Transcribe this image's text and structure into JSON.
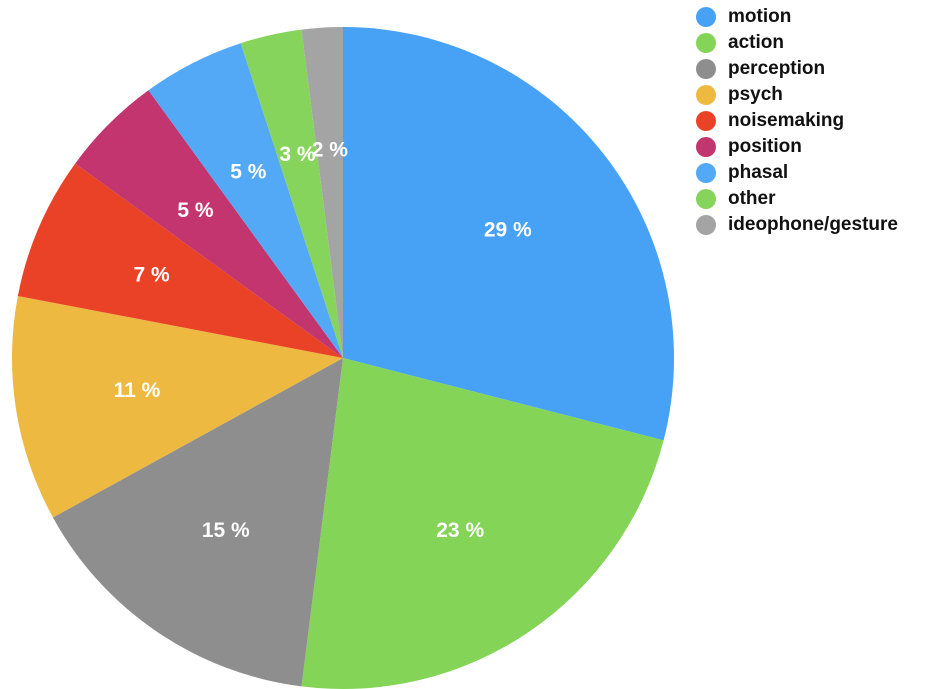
{
  "chart_data": {
    "type": "pie",
    "title": "",
    "start_angle_deg": 0,
    "direction": "clockwise",
    "legend_position": "top-right",
    "value_suffix": " %",
    "slices": [
      {
        "name": "motion",
        "value": 29,
        "label": "29 %",
        "color": "#47A1F5"
      },
      {
        "name": "action",
        "value": 23,
        "label": "23 %",
        "color": "#84D458"
      },
      {
        "name": "perception",
        "value": 15,
        "label": "15 %",
        "color": "#8E8E8E"
      },
      {
        "name": "psych",
        "value": 11,
        "label": "11 %",
        "color": "#EEB940"
      },
      {
        "name": "noisemaking",
        "value": 7,
        "label": "7 %",
        "color": "#EA4226"
      },
      {
        "name": "position",
        "value": 5,
        "label": "5 %",
        "color": "#C2356E"
      },
      {
        "name": "phasal",
        "value": 5,
        "label": "5 %",
        "color": "#53A9F5"
      },
      {
        "name": "other",
        "value": 3,
        "label": "3 %",
        "color": "#86D45C"
      },
      {
        "name": "ideophone/gesture",
        "value": 2,
        "label": "2 %",
        "color": "#A4A4A4"
      }
    ]
  }
}
